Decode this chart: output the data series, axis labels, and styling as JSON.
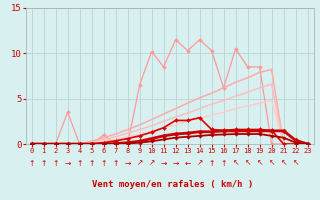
{
  "x": [
    0,
    1,
    2,
    3,
    4,
    5,
    6,
    7,
    8,
    9,
    10,
    11,
    12,
    13,
    14,
    15,
    16,
    17,
    18,
    19,
    20,
    21,
    22,
    23
  ],
  "series": [
    {
      "name": "rafales_spiky",
      "color": "#ff9999",
      "lw": 0.9,
      "marker": "D",
      "markersize": 2.0,
      "y": [
        0,
        0,
        0,
        3.5,
        0,
        0,
        1.0,
        0,
        0,
        6.5,
        10.2,
        8.5,
        11.5,
        10.3,
        11.5,
        10.3,
        6.2,
        10.5,
        8.5,
        8.5,
        0,
        0,
        0,
        0
      ]
    },
    {
      "name": "trend_light1",
      "color": "#ffaaaa",
      "lw": 1.1,
      "marker": null,
      "y": [
        0,
        0,
        0,
        0,
        0,
        0.3,
        0.7,
        1.1,
        1.6,
        2.1,
        2.7,
        3.3,
        3.9,
        4.5,
        5.1,
        5.6,
        6.2,
        6.8,
        7.3,
        7.9,
        8.2,
        0,
        0,
        0
      ]
    },
    {
      "name": "trend_light2",
      "color": "#ffbbbb",
      "lw": 1.0,
      "marker": null,
      "y": [
        0,
        0,
        0,
        0,
        0,
        0.2,
        0.5,
        0.8,
        1.2,
        1.6,
        2.0,
        2.5,
        3.0,
        3.4,
        3.9,
        4.4,
        4.8,
        5.3,
        5.7,
        6.2,
        6.6,
        0,
        0,
        0
      ]
    },
    {
      "name": "trend_light3",
      "color": "#ffcccc",
      "lw": 1.0,
      "marker": null,
      "y": [
        0,
        0,
        0,
        0,
        0,
        0.1,
        0.3,
        0.5,
        0.8,
        1.1,
        1.4,
        1.8,
        2.1,
        2.5,
        2.8,
        3.2,
        3.5,
        3.9,
        4.2,
        4.5,
        4.8,
        0,
        0,
        0
      ]
    },
    {
      "name": "dark_bumpy",
      "color": "#dd0000",
      "lw": 1.2,
      "marker": "D",
      "markersize": 2.0,
      "y": [
        0,
        0,
        0,
        0,
        0,
        0,
        0.15,
        0.35,
        0.6,
        0.9,
        1.3,
        1.8,
        2.6,
        2.6,
        2.9,
        1.6,
        1.5,
        1.6,
        1.6,
        1.6,
        1.5,
        0,
        0,
        0
      ]
    },
    {
      "name": "dark_main",
      "color": "#cc0000",
      "lw": 2.0,
      "marker": "D",
      "markersize": 2.5,
      "y": [
        0,
        0,
        0,
        0,
        0,
        0,
        0,
        0.05,
        0.15,
        0.3,
        0.6,
        0.9,
        1.1,
        1.2,
        1.35,
        1.35,
        1.45,
        1.45,
        1.45,
        1.45,
        1.45,
        1.45,
        0.4,
        0
      ]
    },
    {
      "name": "dark_low",
      "color": "#aa0000",
      "lw": 1.3,
      "marker": "D",
      "markersize": 1.8,
      "y": [
        0,
        0,
        0,
        0,
        0,
        0,
        0,
        0,
        0.05,
        0.15,
        0.3,
        0.5,
        0.7,
        0.8,
        0.9,
        1.0,
        1.05,
        1.1,
        1.1,
        1.1,
        0.9,
        0.7,
        0.15,
        0
      ]
    }
  ],
  "wind_arrows": [
    "↑",
    "↑",
    "↑",
    "→",
    "↑",
    "↑",
    "↑",
    "↑",
    "→",
    "↗",
    "↗",
    "→",
    "→",
    "←",
    "↗",
    "↑",
    "↑",
    "↖",
    "↖",
    "↖",
    "↖",
    "↖",
    "↖"
  ],
  "xlabel": "Vent moyen/en rafales ( km/h )",
  "ylim": [
    0,
    15
  ],
  "xlim": [
    -0.5,
    23.5
  ],
  "yticks": [
    0,
    5,
    10,
    15
  ],
  "xticks": [
    0,
    1,
    2,
    3,
    4,
    5,
    6,
    7,
    8,
    9,
    10,
    11,
    12,
    13,
    14,
    15,
    16,
    17,
    18,
    19,
    20,
    21,
    22,
    23
  ],
  "bg_color": "#d8f0f0",
  "grid_color": "#b8d4d4",
  "text_color": "#cc0000"
}
